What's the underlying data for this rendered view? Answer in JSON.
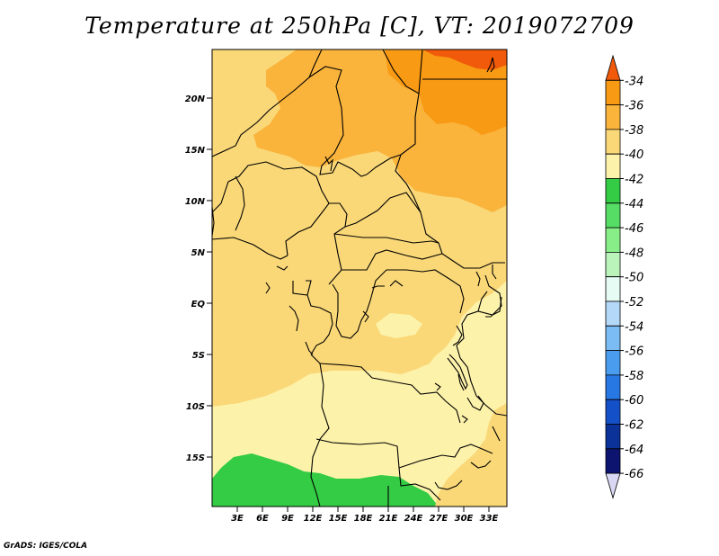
{
  "title": "Temperature at 250hPa [C], VT: 2019072709",
  "credit": "GrADS: IGES/COLA",
  "lat_labels": [
    "20N",
    "15N",
    "10N",
    "5N",
    "EQ",
    "5S",
    "10S",
    "15S"
  ],
  "lon_labels": [
    "3E",
    "6E",
    "9E",
    "12E",
    "15E",
    "18E",
    "21E",
    "24E",
    "27E",
    "30E",
    "33E"
  ],
  "colorbar": {
    "labels": [
      "-34",
      "-36",
      "-38",
      "-40",
      "-42",
      "-44",
      "-46",
      "-48",
      "-50",
      "-52",
      "-54",
      "-56",
      "-58",
      "-60",
      "-62",
      "-64",
      "-66"
    ],
    "colors": [
      "#f05a0a",
      "#f89a14",
      "#fab43c",
      "#fad878",
      "#fdf2aa",
      "#33cc44",
      "#55dd66",
      "#88ee88",
      "#bbf4bb",
      "#e6fbf4",
      "#b4d8f8",
      "#7cbcf4",
      "#4a9cee",
      "#2878e4",
      "#1450c8",
      "#0a3298",
      "#0c1470",
      "#d8d8f4"
    ]
  },
  "field_colors": {
    "c34": "#f05a0a",
    "c36": "#f89a14",
    "c38": "#fab43c",
    "c40": "#fad878",
    "c42": "#fdf2aa",
    "c44": "#33cc44"
  }
}
